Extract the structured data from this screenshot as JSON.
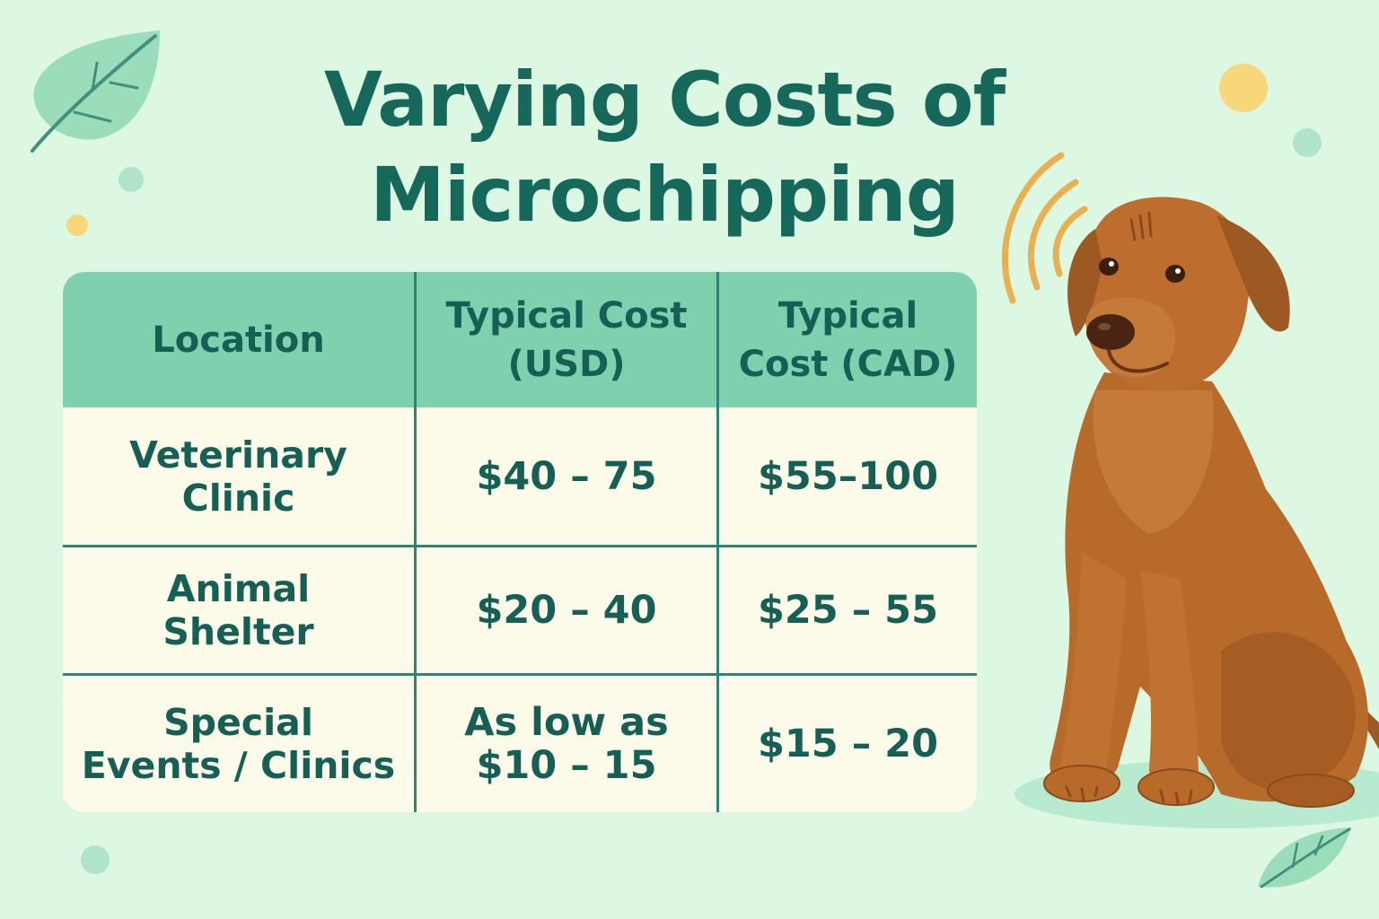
{
  "title": {
    "line1": "Varying Costs of",
    "line2": "Microchipping"
  },
  "table": {
    "headers": [
      [
        "Location"
      ],
      [
        "Typical Cost",
        "(USD)"
      ],
      [
        "Typical",
        "Cost (CAD)"
      ]
    ],
    "rows": [
      {
        "location": [
          "Veterinary",
          "Clinic"
        ],
        "usd": [
          "$40 – 75"
        ],
        "cad": [
          "$55–100"
        ]
      },
      {
        "location": [
          "Animal",
          "Shelter"
        ],
        "usd": [
          "$20 – 40"
        ],
        "cad": [
          "$25 – 55"
        ]
      },
      {
        "location": [
          "Special",
          "Events / Clinics"
        ],
        "usd": [
          "As low as",
          "$10 – 15"
        ],
        "cad": [
          "$15 – 20"
        ]
      }
    ]
  },
  "colors": {
    "background": "#dcf8e3",
    "title": "#16685a",
    "header_fill": "#7fd0ae",
    "cell_fill": "#fcfbea",
    "grid_lines": "#2f8373",
    "dog": "#b86a2b",
    "signal_arcs": "#e9b04f"
  },
  "icons": [
    "leaf-icon",
    "dog-illustration",
    "signal-waves-icon",
    "decorative-dot"
  ]
}
